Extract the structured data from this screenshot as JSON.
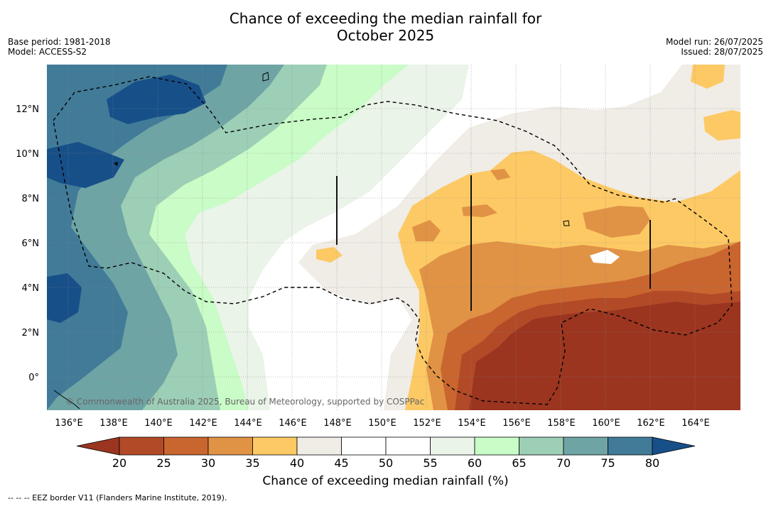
{
  "title_line1": "Chance of exceeding the median rainfall for",
  "title_line2": "October 2025",
  "base_period": "Base period: 1981-2018",
  "model": "Model: ACCESS-S2",
  "model_run": "Model run: 26/07/2025",
  "issued": "Issued: 28/07/2025",
  "copyright": "© Commonwealth of Australia 2025, Bureau of Meteorology, supported by COSPPac",
  "longitudes": [
    "136°E",
    "138°E",
    "140°E",
    "142°E",
    "144°E",
    "146°E",
    "148°E",
    "150°E",
    "152°E",
    "154°E",
    "156°E",
    "158°E",
    "160°E",
    "162°E",
    "164°E"
  ],
  "latitudes": [
    "12°N",
    "10°N",
    "8°N",
    "6°N",
    "4°N",
    "2°N",
    "0°"
  ],
  "colorbar": {
    "ticks": [
      "20",
      "25",
      "30",
      "35",
      "40",
      "45",
      "50",
      "55",
      "60",
      "65",
      "70",
      "75",
      "80"
    ],
    "colors": [
      "#9b3520",
      "#b24a28",
      "#c9652f",
      "#e09245",
      "#fdc964",
      "#f0ece6",
      "#ffffff",
      "#ffffff",
      "#eaf4e8",
      "#c9fcc7",
      "#9dcfb6",
      "#6fa4a5",
      "#417b98",
      "#174f89"
    ],
    "title": "Chance of exceeding median rainfall (%)"
  },
  "footnote": "--  --  -- EEZ border V11 (Flanders Marine Institute, 2019)."
}
